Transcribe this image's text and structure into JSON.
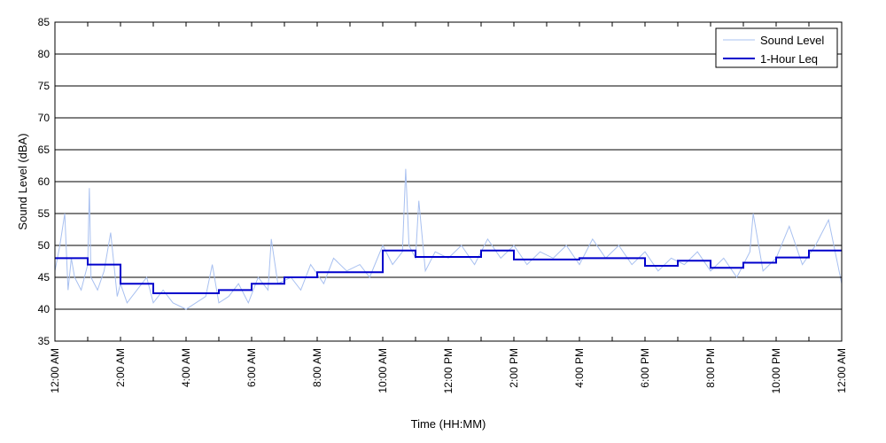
{
  "chart_data": {
    "type": "line",
    "title": "",
    "xlabel": "Time (HH:MM)",
    "ylabel": "Sound Level (dBA)",
    "ylim": [
      35,
      85
    ],
    "yticks": [
      35,
      40,
      45,
      50,
      55,
      60,
      65,
      70,
      75,
      80,
      85
    ],
    "xlim": [
      0,
      24
    ],
    "xticks": [
      {
        "x": 0,
        "label": "12:00 AM"
      },
      {
        "x": 2,
        "label": "2:00 AM"
      },
      {
        "x": 4,
        "label": "4:00 AM"
      },
      {
        "x": 6,
        "label": "6:00 AM"
      },
      {
        "x": 8,
        "label": "8:00 AM"
      },
      {
        "x": 10,
        "label": "10:00 AM"
      },
      {
        "x": 12,
        "label": "12:00 PM"
      },
      {
        "x": 14,
        "label": "2:00 PM"
      },
      {
        "x": 16,
        "label": "4:00 PM"
      },
      {
        "x": 18,
        "label": "6:00 PM"
      },
      {
        "x": 20,
        "label": "8:00 PM"
      },
      {
        "x": 22,
        "label": "10:00 PM"
      },
      {
        "x": 24,
        "label": "12:00 AM"
      }
    ],
    "grid": "horizontal",
    "legend": "top-right",
    "series": [
      {
        "name": "Sound Level",
        "color": "#a8c0f0",
        "style": "thin-line",
        "x": [
          0,
          0.15,
          0.3,
          0.4,
          0.5,
          0.6,
          0.8,
          1.0,
          1.05,
          1.1,
          1.3,
          1.5,
          1.7,
          1.9,
          2.0,
          2.2,
          2.5,
          2.8,
          3.0,
          3.3,
          3.6,
          4.0,
          4.3,
          4.6,
          4.8,
          5.0,
          5.3,
          5.6,
          5.9,
          6.2,
          6.5,
          6.6,
          6.8,
          7.2,
          7.5,
          7.8,
          8.2,
          8.5,
          8.9,
          9.3,
          9.6,
          10.0,
          10.3,
          10.6,
          10.7,
          10.8,
          11.0,
          11.1,
          11.3,
          11.6,
          12.0,
          12.4,
          12.8,
          13.2,
          13.6,
          14.0,
          14.4,
          14.8,
          15.2,
          15.6,
          16.0,
          16.4,
          16.8,
          17.2,
          17.6,
          18.0,
          18.4,
          18.8,
          19.2,
          19.6,
          20.0,
          20.4,
          20.8,
          21.2,
          21.3,
          21.6,
          22.0,
          22.4,
          22.8,
          23.2,
          23.6,
          24.0
        ],
        "values": [
          46,
          50,
          55,
          43,
          48,
          45,
          43,
          47,
          59,
          45,
          43,
          46,
          52,
          42,
          44,
          41,
          43,
          45,
          41,
          43,
          41,
          40,
          41,
          42,
          47,
          41,
          42,
          44,
          41,
          45,
          43,
          51,
          44,
          45,
          43,
          47,
          44,
          48,
          46,
          47,
          45,
          50,
          47,
          49,
          62,
          50,
          48,
          57,
          46,
          49,
          48,
          50,
          47,
          51,
          48,
          50,
          47,
          49,
          48,
          50,
          47,
          51,
          48,
          50,
          47,
          49,
          46,
          48,
          47,
          49,
          46,
          48,
          45,
          49,
          55,
          46,
          48,
          53,
          47,
          50,
          54,
          44
        ]
      },
      {
        "name": "1-Hour Leq",
        "color": "#0000cc",
        "style": "step",
        "x": [
          0,
          1,
          2,
          3,
          4,
          5,
          6,
          7,
          8,
          9,
          10,
          11,
          12,
          13,
          14,
          15,
          16,
          17,
          18,
          19,
          20,
          21,
          22,
          23,
          24
        ],
        "values": [
          48,
          47,
          44,
          42.5,
          42.5,
          43,
          44,
          45,
          45.8,
          45.8,
          49.2,
          48.2,
          48.2,
          49.2,
          47.8,
          47.8,
          48,
          48,
          46.8,
          47.6,
          46.5,
          47.3,
          48.1,
          49.2,
          49.2
        ]
      }
    ]
  }
}
